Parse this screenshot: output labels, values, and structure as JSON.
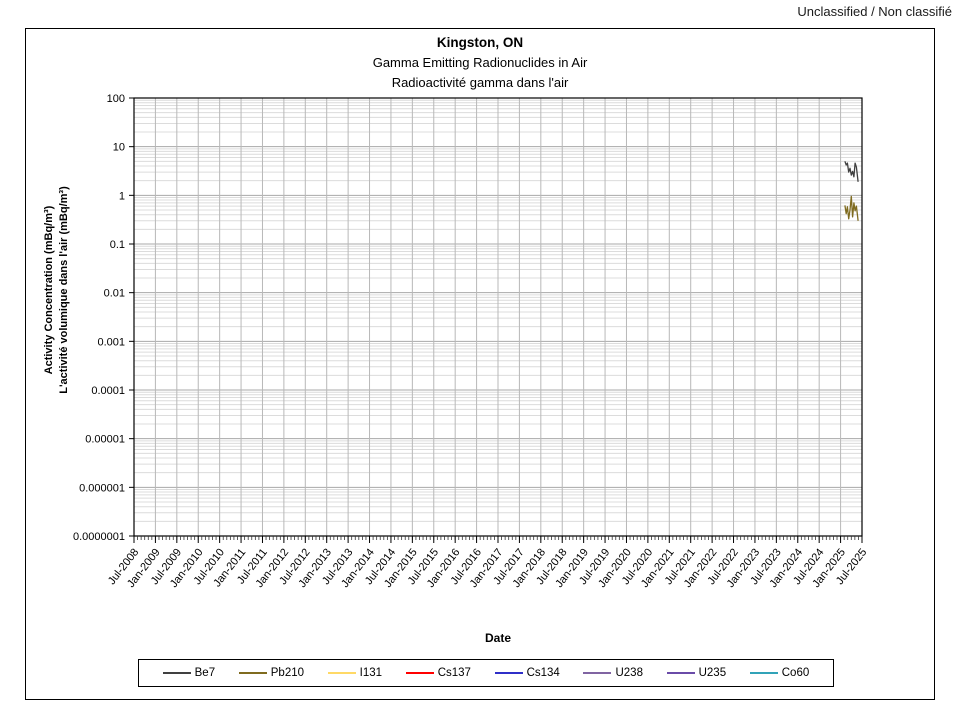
{
  "classification": "Unclassified / Non classifié",
  "chart_data": {
    "type": "line",
    "title": "Kingston, ON",
    "subtitle_en": "Gamma Emitting Radionuclides in Air",
    "subtitle_fr": "Radioactivité gamma dans l'air",
    "xlabel": "Date",
    "ylabel_en": "Activity Concentration  (mBq/m³)",
    "ylabel_fr": "L'activité volumique dans l'air (mBq/m³)",
    "y_scale": "log",
    "ylim": [
      1e-07,
      100
    ],
    "x_range_decimal_years": [
      2008.5,
      2025.5
    ],
    "grid": "horizontal log major+minor, vertical every 6 months",
    "legend_position": "bottom",
    "yticks": [
      {
        "value": 100,
        "label": "100"
      },
      {
        "value": 10,
        "label": "10"
      },
      {
        "value": 1,
        "label": "1"
      },
      {
        "value": 0.1,
        "label": "0.1"
      },
      {
        "value": 0.01,
        "label": "0.01"
      },
      {
        "value": 0.001,
        "label": "0.001"
      },
      {
        "value": 0.0001,
        "label": "0.0001"
      },
      {
        "value": 1e-05,
        "label": "0.00001"
      },
      {
        "value": 1e-06,
        "label": "0.000001"
      },
      {
        "value": 1e-07,
        "label": "0.0000001"
      }
    ],
    "xticks": [
      "Jul-2008",
      "Jan-2009",
      "Jul-2009",
      "Jan-2010",
      "Jul-2010",
      "Jan-2011",
      "Jul-2011",
      "Jan-2012",
      "Jul-2012",
      "Jan-2013",
      "Jul-2013",
      "Jan-2014",
      "Jul-2014",
      "Jan-2015",
      "Jul-2015",
      "Jan-2016",
      "Jul-2016",
      "Jan-2017",
      "Jul-2017",
      "Jan-2018",
      "Jul-2018",
      "Jan-2019",
      "Jul-2019",
      "Jan-2020",
      "Jul-2020",
      "Jan-2021",
      "Jul-2021",
      "Jan-2022",
      "Jul-2022",
      "Jan-2023",
      "Jul-2023",
      "Jan-2024",
      "Jul-2024",
      "Jan-2025",
      "Jul-2025"
    ],
    "series": [
      {
        "name": "Be7",
        "color": "#404040",
        "points": [
          [
            2025.1,
            5.0
          ],
          [
            2025.13,
            4.2
          ],
          [
            2025.16,
            4.6
          ],
          [
            2025.19,
            3.0
          ],
          [
            2025.22,
            3.6
          ],
          [
            2025.25,
            2.6
          ],
          [
            2025.28,
            3.1
          ],
          [
            2025.31,
            2.4
          ],
          [
            2025.34,
            4.6
          ],
          [
            2025.37,
            3.8
          ],
          [
            2025.41,
            1.9
          ]
        ]
      },
      {
        "name": "Pb210",
        "color": "#7F6B1F",
        "points": [
          [
            2025.1,
            0.62
          ],
          [
            2025.13,
            0.42
          ],
          [
            2025.16,
            0.58
          ],
          [
            2025.19,
            0.33
          ],
          [
            2025.22,
            0.5
          ],
          [
            2025.25,
            0.95
          ],
          [
            2025.28,
            0.36
          ],
          [
            2025.31,
            0.7
          ],
          [
            2025.34,
            0.48
          ],
          [
            2025.37,
            0.6
          ],
          [
            2025.41,
            0.3
          ]
        ]
      },
      {
        "name": "I131",
        "color": "#FFD966",
        "points": []
      },
      {
        "name": "Cs137",
        "color": "#FF0000",
        "points": []
      },
      {
        "name": "Cs134",
        "color": "#2F2FC8",
        "points": []
      },
      {
        "name": "U238",
        "color": "#8064A2",
        "points": []
      },
      {
        "name": "U235",
        "color": "#6A4BA8",
        "points": []
      },
      {
        "name": "Co60",
        "color": "#31A3B8",
        "points": []
      }
    ]
  }
}
